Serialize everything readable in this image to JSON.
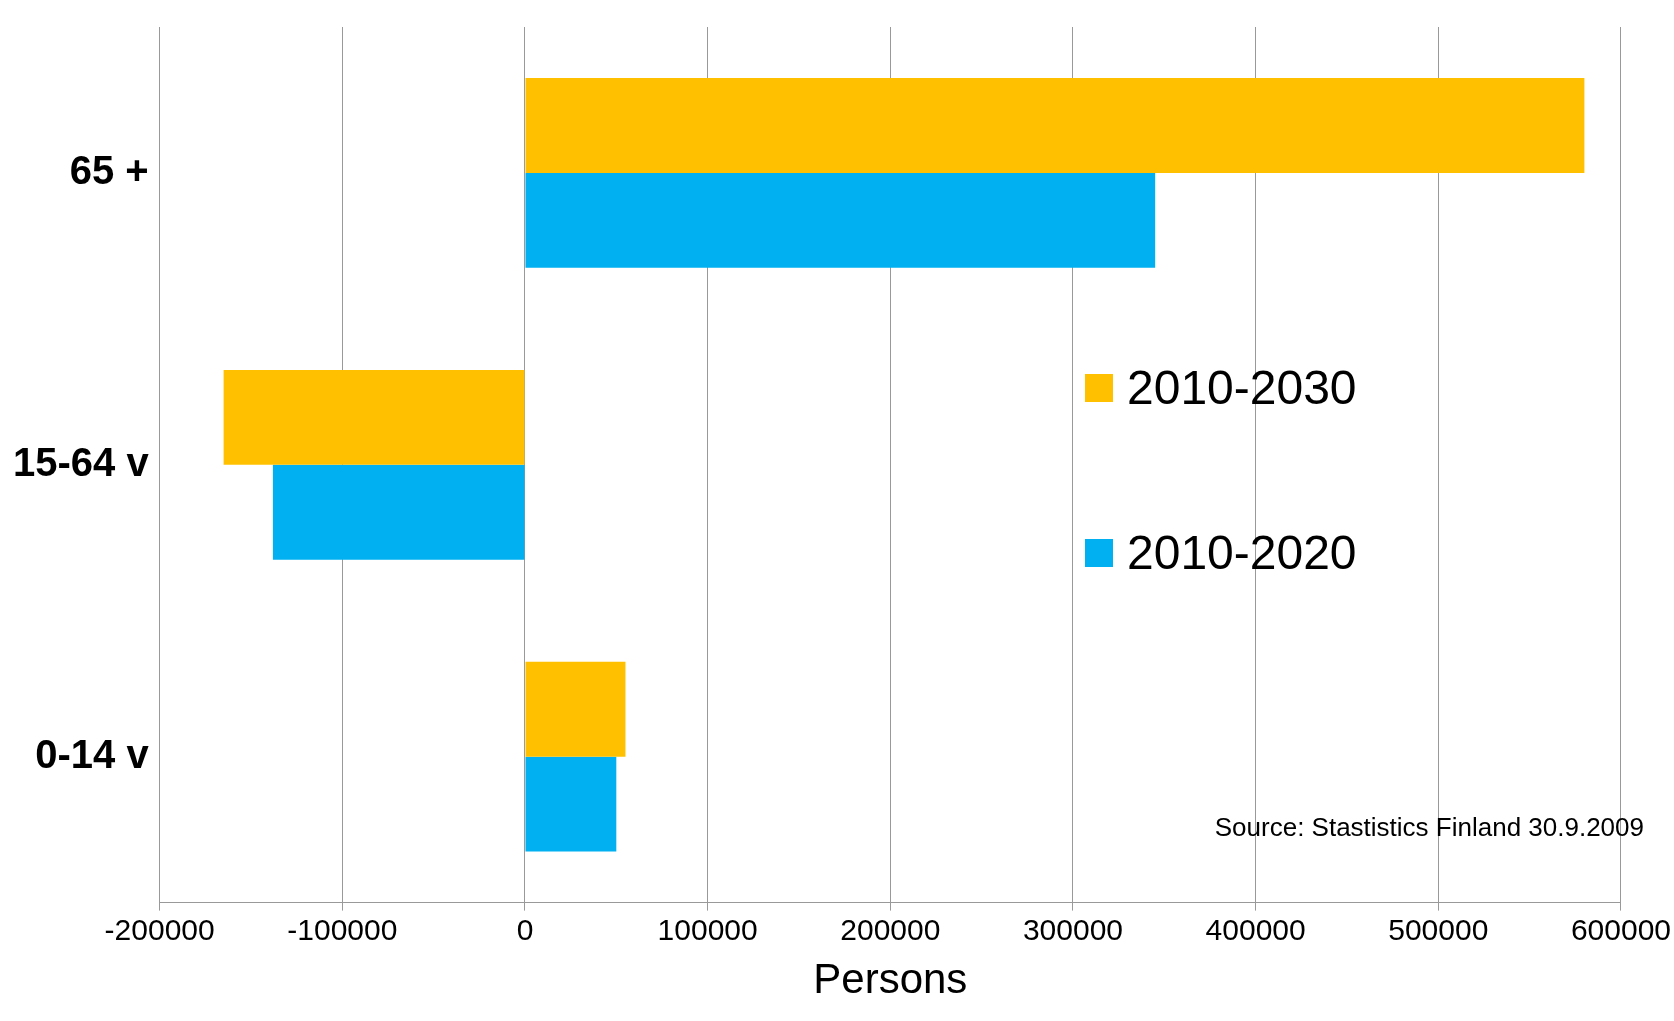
{
  "chart_data": {
    "type": "bar",
    "orientation": "horizontal",
    "categories": [
      "65 +",
      "15-64 v",
      "0-14 v"
    ],
    "series": [
      {
        "name": "2010-2030",
        "color": "#ffc000",
        "values": [
          580000,
          -165000,
          55000
        ]
      },
      {
        "name": "2010-2020",
        "color": "#00b0f0",
        "values": [
          345000,
          -138000,
          50000
        ]
      }
    ],
    "xlabel": "Persons",
    "xlim": [
      -200000,
      600000
    ],
    "xticks": [
      -200000,
      -100000,
      0,
      100000,
      200000,
      300000,
      400000,
      500000,
      600000
    ],
    "grid": "x",
    "legend": "right",
    "annotations": [
      "Source: Stastistics Finland 30.9.2009"
    ]
  }
}
